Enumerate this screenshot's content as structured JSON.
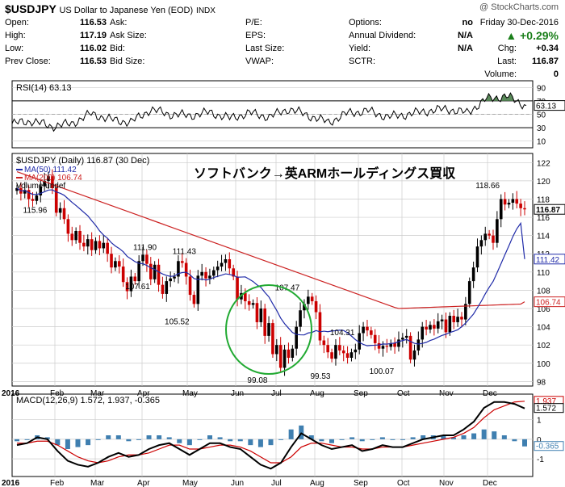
{
  "header": {
    "symbol": "$USDJPY",
    "name": "US Dollar to Japanese Yen (EOD)",
    "exchange": "INDX",
    "watermark": "@ StockCharts.com",
    "date": "Friday 30-Dec-2016",
    "pct_change": "▲ +0.29%",
    "quote_rows": [
      {
        "label": "Open:",
        "value": "116.53",
        "label2": "Ask:",
        "value2": "",
        "label3": "P/E:",
        "value3": "",
        "label4": "Options:",
        "value4": "no"
      },
      {
        "label": "High:",
        "value": "117.19",
        "label2": "Ask Size:",
        "value2": "",
        "label3": "EPS:",
        "value3": "",
        "label4": "Annual Dividend:",
        "value4": "N/A"
      },
      {
        "label": "Low:",
        "value": "116.02",
        "label2": "Bid:",
        "value2": "",
        "label3": "Last Size:",
        "value3": "",
        "label4": "Yield:",
        "value4": "N/A"
      },
      {
        "label": "Prev Close:",
        "value": "116.53",
        "label2": "Bid Size:",
        "value2": "",
        "label3": "VWAP:",
        "value3": "",
        "label4": "SCTR:",
        "value4": ""
      }
    ],
    "right_rows": [
      {
        "label": "Chg:",
        "value": "+0.34"
      },
      {
        "label": "Last:",
        "value": "116.87"
      },
      {
        "label": "Volume:",
        "value": "0"
      }
    ]
  },
  "colors": {
    "up": "#000000",
    "down": "#cc0000",
    "ma50": "#1f2aa8",
    "ma200": "#cc2222",
    "rsi_fill": "#5a8a5a",
    "macd": "#000000",
    "signal": "#cc0000",
    "hist": "#3f7fb0",
    "annot": "#22aa33",
    "grid": "#cccccc"
  },
  "annotation_text": "ソフトバンク→英ARMホールディングス買収",
  "chart_data": [
    {
      "type": "line",
      "panel": "rsi",
      "legend": "RSI(14) 63.13",
      "last_value": "63.13",
      "y_ticks": [
        "90",
        "70",
        "50",
        "30",
        "10"
      ],
      "ylim": [
        0,
        100
      ],
      "levels": [
        70,
        30
      ],
      "x": [
        0,
        10,
        20,
        30,
        40,
        50,
        60,
        70,
        80,
        90,
        100,
        110,
        120,
        130,
        140,
        150,
        160,
        170,
        180,
        190,
        200,
        210,
        220,
        230,
        240,
        250,
        260
      ],
      "values": [
        36,
        40,
        32,
        36,
        51,
        42,
        38,
        57,
        50,
        48,
        53,
        44,
        52,
        46,
        58,
        48,
        38,
        52,
        55,
        46,
        50,
        55,
        58,
        52,
        73,
        77,
        63
      ]
    },
    {
      "type": "candlestick",
      "panel": "price",
      "legend": "$USDJPY (Daily) 116.87 (30 Dec)",
      "ma50_legend": "MA(50) 111.42",
      "ma200_legend": "MA(200) 106.74",
      "volume_legend": "Volume undef",
      "last_price": "116.87",
      "ma50_last": "111.42",
      "ma200_last": "106.74",
      "y_ticks": [
        "122",
        "120",
        "118",
        "116",
        "114",
        "112",
        "110",
        "108",
        "106",
        "104",
        "102",
        "100",
        "98"
      ],
      "ylim": [
        97.5,
        123
      ],
      "x_labels": [
        "2016",
        "Feb",
        "Mar",
        "Apr",
        "May",
        "Jun",
        "Jul",
        "Aug",
        "Sep",
        "Oct",
        "Nov",
        "Dec"
      ],
      "annotations": [
        {
          "x": 8,
          "y": 115.96,
          "label": "115.96"
        },
        {
          "x": 64,
          "y": 111.9,
          "label": "111.90"
        },
        {
          "x": 60,
          "y": 107.61,
          "label": "107.61"
        },
        {
          "x": 84,
          "y": 111.43,
          "label": "111.43"
        },
        {
          "x": 80,
          "y": 105.52,
          "label": "105.52"
        },
        {
          "x": 122,
          "y": 99.08,
          "label": "99.08"
        },
        {
          "x": 137,
          "y": 107.47,
          "label": "107.47"
        },
        {
          "x": 166,
          "y": 104.31,
          "label": "104.31"
        },
        {
          "x": 155,
          "y": 99.53,
          "label": "99.53"
        },
        {
          "x": 186,
          "y": 100.07,
          "label": "100.07"
        },
        {
          "x": 240,
          "y": 118.66,
          "label": "118.66"
        }
      ],
      "close_path": [
        119.2,
        118.6,
        119.0,
        118.0,
        117.8,
        118.4,
        119.4,
        120.0,
        120.5,
        119.2,
        116.5,
        117.0,
        115.8,
        114.2,
        113.5,
        114.5,
        113.2,
        112.8,
        113.6,
        112.4,
        113.4,
        112.6,
        113.2,
        112.0,
        110.5,
        111.2,
        110.6,
        108.9,
        107.9,
        109.5,
        109.0,
        111.2,
        111.9,
        110.9,
        109.2,
        110.8,
        108.6,
        107.6,
        109.0,
        109.3,
        109.5,
        111.2,
        111.0,
        109.5,
        107.5,
        106.5,
        109.6,
        110.0,
        109.3,
        109.6,
        110.2,
        110.6,
        111.0,
        111.4,
        110.4,
        109.5,
        107.0,
        107.7,
        106.8,
        106.4,
        106.6,
        104.5,
        106.0,
        103.0,
        104.4,
        101.0,
        102.0,
        99.5,
        101.5,
        100.6,
        101.6,
        104.0,
        105.8,
        106.5,
        107.3,
        106.8,
        105.6,
        102.5,
        102.0,
        101.2,
        100.5,
        102.0,
        101.4,
        101.1,
        100.6,
        101.2,
        101.5,
        103.3,
        104.0,
        103.6,
        103.1,
        102.2,
        101.6,
        101.9,
        101.8,
        102.2,
        101.8,
        102.6,
        102.8,
        103.0,
        100.4,
        101.4,
        102.6,
        104.0,
        103.7,
        104.2,
        103.8,
        104.6,
        104.8,
        103.4,
        105.2,
        104.5,
        105.1,
        104.8,
        106.5,
        109.0,
        110.5,
        112.8,
        113.5,
        114.2,
        114.0,
        113.2,
        115.8,
        118.0,
        117.4,
        117.6,
        118.0,
        117.5,
        117.0,
        116.87
      ]
    },
    {
      "type": "line",
      "panel": "macd",
      "legend": "MACD(12,26,9) 1.572, 1.937, -0.365",
      "macd_last": "1.572",
      "signal_last": "1.937",
      "hist_last": "-0.365",
      "y_ticks": [
        "1",
        "0",
        "-1"
      ],
      "ylim": [
        -1.9,
        2.3
      ],
      "macd": [
        -0.3,
        -0.2,
        0.1,
        0.0,
        -0.6,
        -1.1,
        -1.3,
        -1.4,
        -1.2,
        -0.9,
        -0.7,
        -0.9,
        -0.8,
        -0.5,
        -0.3,
        -0.2,
        -0.5,
        -0.8,
        -0.5,
        -0.2,
        -0.2,
        -0.4,
        -0.5,
        -0.9,
        -1.3,
        -1.5,
        -1.2,
        -0.4,
        0.3,
        0.0,
        -0.3,
        -0.5,
        -0.4,
        -0.3,
        -0.6,
        -0.5,
        -0.3,
        -0.4,
        -0.4,
        -0.2,
        0.0,
        0.1,
        0.2,
        0.2,
        0.5,
        0.9,
        1.6,
        1.9,
        1.9,
        1.8,
        1.572
      ],
      "signal": [
        -0.2,
        -0.2,
        -0.1,
        -0.1,
        -0.3,
        -0.6,
        -0.9,
        -1.1,
        -1.2,
        -1.1,
        -0.9,
        -0.8,
        -0.8,
        -0.7,
        -0.5,
        -0.3,
        -0.3,
        -0.5,
        -0.5,
        -0.4,
        -0.3,
        -0.3,
        -0.4,
        -0.6,
        -0.9,
        -1.2,
        -1.2,
        -0.9,
        -0.4,
        -0.2,
        -0.2,
        -0.3,
        -0.4,
        -0.4,
        -0.5,
        -0.5,
        -0.4,
        -0.4,
        -0.4,
        -0.3,
        -0.2,
        -0.1,
        0.0,
        0.1,
        0.3,
        0.6,
        1.1,
        1.5,
        1.7,
        1.9,
        1.937
      ]
    }
  ]
}
